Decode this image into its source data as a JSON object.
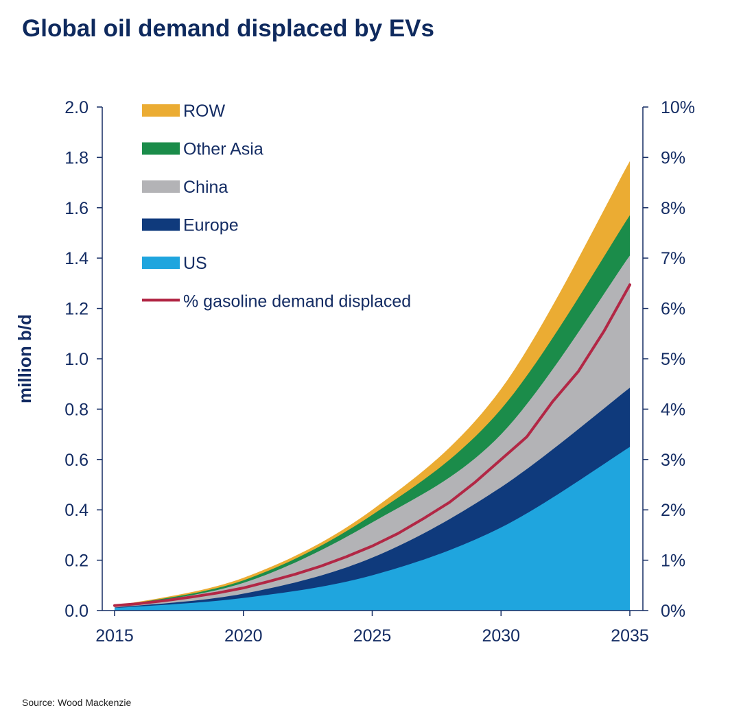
{
  "chart_data": {
    "type": "area",
    "title": "Global oil demand displaced by EVs",
    "source": "Source: Wood Mackenzie",
    "ylabel": "million b/d",
    "ylim": [
      0,
      2.0
    ],
    "y2lim": [
      0,
      10
    ],
    "y_ticks": [
      "0.0",
      "0.2",
      "0.4",
      "0.6",
      "0.8",
      "1.0",
      "1.2",
      "1.4",
      "1.6",
      "1.8",
      "2.0"
    ],
    "y2_ticks": [
      "0%",
      "1%",
      "2%",
      "3%",
      "4%",
      "5%",
      "6%",
      "7%",
      "8%",
      "9%",
      "10%"
    ],
    "x_ticks": [
      "2015",
      "2020",
      "2025",
      "2030",
      "2035"
    ],
    "xlim": [
      2015,
      2035
    ],
    "stacked": true,
    "grid": false,
    "legend_position": "top-left",
    "x": [
      2015,
      2020,
      2025,
      2030,
      2035
    ],
    "series": [
      {
        "name": "US",
        "color": "#1fa5de",
        "values": [
          0.01,
          0.05,
          0.14,
          0.33,
          0.65
        ]
      },
      {
        "name": "Europe",
        "color": "#0f3a7c",
        "values": [
          0.002,
          0.017,
          0.07,
          0.16,
          0.235
        ]
      },
      {
        "name": "China",
        "color": "#b3b3b6",
        "values": [
          0.003,
          0.043,
          0.14,
          0.21,
          0.525
        ]
      },
      {
        "name": "Other Asia",
        "color": "#1b8c4a",
        "values": [
          0.002,
          0.01,
          0.03,
          0.1,
          0.16
        ]
      },
      {
        "name": "ROW",
        "color": "#ebac33",
        "values": [
          0.001,
          0.01,
          0.02,
          0.08,
          0.215
        ]
      }
    ],
    "line_series": {
      "name": "% gasoline demand displaced",
      "color": "#b22745",
      "axis": "right",
      "x": [
        2015,
        2016,
        2017,
        2018,
        2019,
        2020,
        2021,
        2022,
        2023,
        2024,
        2025,
        2026,
        2027,
        2028,
        2029,
        2030,
        2031,
        2032,
        2033,
        2034,
        2035
      ],
      "values": [
        0.1,
        0.14,
        0.2,
        0.27,
        0.35,
        0.45,
        0.58,
        0.72,
        0.88,
        1.07,
        1.28,
        1.53,
        1.83,
        2.15,
        2.55,
        3.0,
        3.45,
        4.15,
        4.75,
        5.55,
        6.47
      ]
    },
    "legend_order": [
      "ROW",
      "Other Asia",
      "China",
      "Europe",
      "US",
      "% gasoline demand displaced"
    ]
  }
}
